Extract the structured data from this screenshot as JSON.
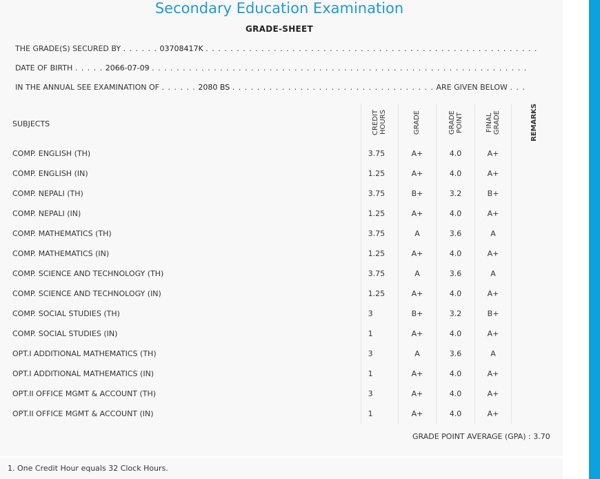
{
  "header": {
    "exam_title": "Secondary Education Examination",
    "sheet_title": "GRADE-SHEET"
  },
  "info": {
    "secured_by_label": "THE GRADE(S) SECURED BY",
    "symbol_no": "03708417K",
    "dob_label": "DATE OF BIRTH",
    "dob": "2066-07-09",
    "exam_label": "IN THE ANNUAL SEE EXAMINATION OF",
    "exam_year": "2080 BS",
    "given_below": "ARE GIVEN BELOW"
  },
  "table": {
    "headers": {
      "subjects": "SUBJECTS",
      "credit_hours_1": "CREDIT",
      "credit_hours_2": "HOURS",
      "grade": "GRADE",
      "grade_point_1": "GRADE",
      "grade_point_2": "POINT",
      "final_grade_1": "FINAL",
      "final_grade_2": "GRADE",
      "remarks": "REMARKS"
    },
    "rows": [
      {
        "subject": "COMP. ENGLISH (TH)",
        "credit": "3.75",
        "grade": "A+",
        "point": "4.0",
        "final": "A+",
        "remarks": ""
      },
      {
        "subject": "COMP. ENGLISH (IN)",
        "credit": "1.25",
        "grade": "A+",
        "point": "4.0",
        "final": "A+",
        "remarks": ""
      },
      {
        "subject": "COMP. NEPALI (TH)",
        "credit": "3.75",
        "grade": "B+",
        "point": "3.2",
        "final": "B+",
        "remarks": ""
      },
      {
        "subject": "COMP. NEPALI (IN)",
        "credit": "1.25",
        "grade": "A+",
        "point": "4.0",
        "final": "A+",
        "remarks": ""
      },
      {
        "subject": "COMP. MATHEMATICS (TH)",
        "credit": "3.75",
        "grade": "A",
        "point": "3.6",
        "final": "A",
        "remarks": ""
      },
      {
        "subject": "COMP. MATHEMATICS (IN)",
        "credit": "1.25",
        "grade": "A+",
        "point": "4.0",
        "final": "A+",
        "remarks": ""
      },
      {
        "subject": "COMP. SCIENCE AND TECHNOLOGY (TH)",
        "credit": "3.75",
        "grade": "A",
        "point": "3.6",
        "final": "A",
        "remarks": ""
      },
      {
        "subject": "COMP. SCIENCE AND TECHNOLOGY (IN)",
        "credit": "1.25",
        "grade": "A+",
        "point": "4.0",
        "final": "A+",
        "remarks": ""
      },
      {
        "subject": "COMP. SOCIAL STUDIES (TH)",
        "credit": "3",
        "grade": "B+",
        "point": "3.2",
        "final": "B+",
        "remarks": ""
      },
      {
        "subject": "COMP. SOCIAL STUDIES (IN)",
        "credit": "1",
        "grade": "A+",
        "point": "4.0",
        "final": "A+",
        "remarks": ""
      },
      {
        "subject": "OPT.I ADDITIONAL MATHEMATICS (TH)",
        "credit": "3",
        "grade": "A",
        "point": "3.6",
        "final": "A",
        "remarks": ""
      },
      {
        "subject": "OPT.I ADDITIONAL MATHEMATICS (IN)",
        "credit": "1",
        "grade": "A+",
        "point": "4.0",
        "final": "A+",
        "remarks": ""
      },
      {
        "subject": "OPT.II OFFICE MGMT & ACCOUNT (TH)",
        "credit": "3",
        "grade": "A+",
        "point": "4.0",
        "final": "A+",
        "remarks": ""
      },
      {
        "subject": "OPT.II OFFICE MGMT & ACCOUNT (IN)",
        "credit": "1",
        "grade": "A+",
        "point": "4.0",
        "final": "A+",
        "remarks": ""
      }
    ]
  },
  "gpa": {
    "label": "GRADE POINT AVERAGE (GPA) :",
    "value": "3.70"
  },
  "footnote": "1. One Credit Hour equals 32 Clock Hours.",
  "colors": {
    "title_blue": "#1e9ad6",
    "scrollbar_blue": "#0da2dd",
    "sheet_bg": "#f8f8f8"
  }
}
